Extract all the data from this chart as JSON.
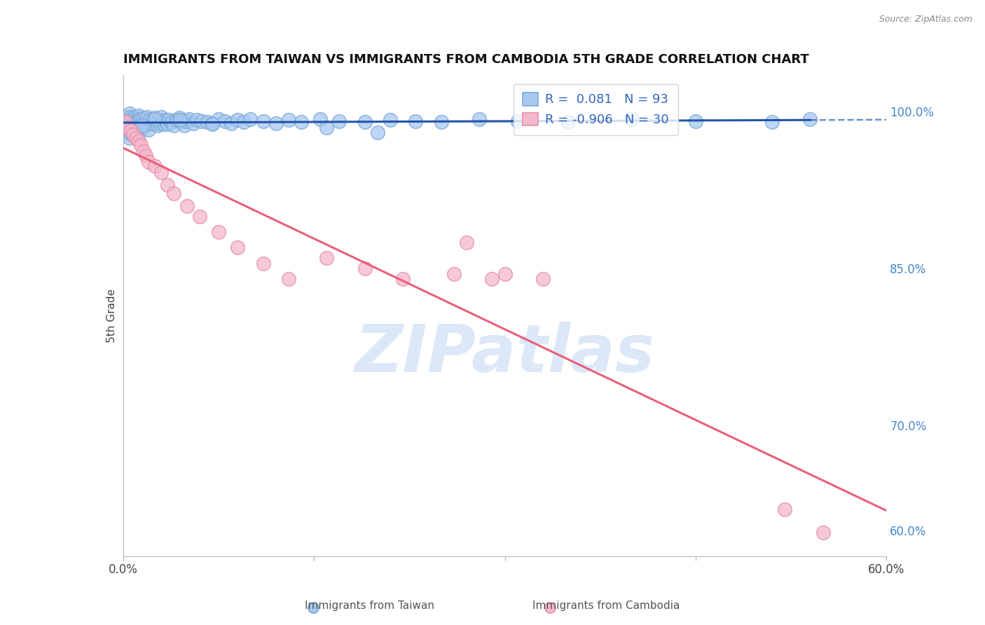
{
  "title": "IMMIGRANTS FROM TAIWAN VS IMMIGRANTS FROM CAMBODIA 5TH GRADE CORRELATION CHART",
  "source": "Source: ZipAtlas.com",
  "ylabel": "5th Grade",
  "taiwan_R": 0.081,
  "taiwan_N": 93,
  "cambodia_R": -0.906,
  "cambodia_N": 30,
  "taiwan_color": "#a8c8f0",
  "taiwan_edge_color": "#7aaad8",
  "cambodia_color": "#f4b8cc",
  "cambodia_edge_color": "#e890a8",
  "taiwan_line_color": "#2255aa",
  "cambodia_line_color": "#e8607a",
  "watermark_color": "#dce8f8",
  "background_color": "#ffffff",
  "grid_color": "#d8e4f0",
  "right_axis_color": "#4488cc",
  "xmin": 0.0,
  "xmax": 0.6,
  "ymin": 0.575,
  "ymax": 1.035,
  "ytick_vals": [
    0.6,
    0.7,
    0.85,
    1.0
  ],
  "ytick_labels": [
    "60.0%",
    "70.0%",
    "85.0%",
    "100.0%"
  ],
  "xtick_vals": [
    0.0,
    0.15,
    0.3,
    0.45,
    0.6
  ],
  "xtick_labels": [
    "0.0%",
    "",
    "",
    "",
    "60.0%"
  ],
  "taiwan_x": [
    0.001,
    0.002,
    0.003,
    0.003,
    0.004,
    0.004,
    0.005,
    0.005,
    0.005,
    0.006,
    0.006,
    0.007,
    0.007,
    0.008,
    0.008,
    0.009,
    0.009,
    0.01,
    0.01,
    0.011,
    0.011,
    0.012,
    0.012,
    0.013,
    0.013,
    0.014,
    0.015,
    0.015,
    0.016,
    0.017,
    0.018,
    0.018,
    0.019,
    0.02,
    0.02,
    0.021,
    0.022,
    0.023,
    0.024,
    0.025,
    0.026,
    0.027,
    0.028,
    0.029,
    0.03,
    0.031,
    0.032,
    0.033,
    0.034,
    0.035,
    0.036,
    0.038,
    0.04,
    0.042,
    0.044,
    0.046,
    0.048,
    0.05,
    0.052,
    0.055,
    0.058,
    0.062,
    0.066,
    0.07,
    0.075,
    0.08,
    0.085,
    0.09,
    0.095,
    0.1,
    0.11,
    0.12,
    0.13,
    0.14,
    0.155,
    0.17,
    0.19,
    0.21,
    0.23,
    0.25,
    0.28,
    0.31,
    0.35,
    0.4,
    0.45,
    0.51,
    0.54,
    0.2,
    0.16,
    0.07,
    0.045,
    0.025,
    0.015
  ],
  "taiwan_y": [
    0.99,
    0.985,
    0.995,
    0.988,
    0.992,
    0.98,
    0.998,
    0.988,
    0.975,
    0.995,
    0.985,
    0.992,
    0.978,
    0.99,
    0.982,
    0.995,
    0.988,
    0.993,
    0.985,
    0.992,
    0.987,
    0.996,
    0.984,
    0.993,
    0.98,
    0.992,
    0.99,
    0.985,
    0.994,
    0.987,
    0.992,
    0.988,
    0.995,
    0.99,
    0.983,
    0.993,
    0.989,
    0.992,
    0.988,
    0.994,
    0.99,
    0.987,
    0.992,
    0.989,
    0.995,
    0.991,
    0.988,
    0.992,
    0.99,
    0.988,
    0.992,
    0.99,
    0.987,
    0.992,
    0.994,
    0.99,
    0.987,
    0.991,
    0.993,
    0.989,
    0.992,
    0.991,
    0.99,
    0.989,
    0.993,
    0.991,
    0.989,
    0.992,
    0.99,
    0.993,
    0.991,
    0.989,
    0.992,
    0.99,
    0.993,
    0.991,
    0.99,
    0.992,
    0.991,
    0.99,
    0.993,
    0.991,
    0.99,
    0.993,
    0.991,
    0.99,
    0.993,
    0.98,
    0.985,
    0.988,
    0.992,
    0.993,
    0.987
  ],
  "cambodia_x": [
    0.002,
    0.004,
    0.006,
    0.008,
    0.01,
    0.012,
    0.014,
    0.016,
    0.018,
    0.02,
    0.025,
    0.03,
    0.035,
    0.04,
    0.05,
    0.06,
    0.075,
    0.09,
    0.11,
    0.13,
    0.16,
    0.19,
    0.22,
    0.26,
    0.29,
    0.33,
    0.27,
    0.3,
    0.52,
    0.55
  ],
  "cambodia_y": [
    0.99,
    0.985,
    0.982,
    0.978,
    0.975,
    0.972,
    0.968,
    0.962,
    0.958,
    0.952,
    0.948,
    0.942,
    0.93,
    0.922,
    0.91,
    0.9,
    0.885,
    0.87,
    0.855,
    0.84,
    0.86,
    0.85,
    0.84,
    0.845,
    0.84,
    0.84,
    0.875,
    0.845,
    0.62,
    0.598
  ]
}
